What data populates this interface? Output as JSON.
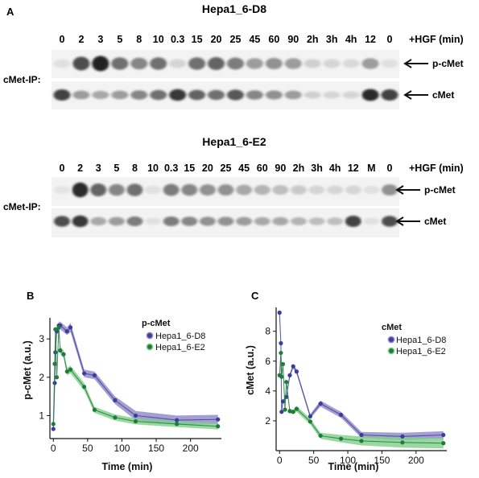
{
  "panel_a": {
    "letter": "A",
    "blots": [
      {
        "title": "Hepa1_6-D8",
        "lanes": [
          "0",
          "2",
          "3",
          "5",
          "8",
          "10",
          "0.3",
          "15",
          "20",
          "25",
          "45",
          "60",
          "90",
          "2h",
          "3h",
          "4h",
          "12",
          "0"
        ],
        "condition_label": "+HGF (min)",
        "side_label": "cMet-IP:",
        "band_labels": [
          "p-cMet",
          "cMet"
        ],
        "pcmet_intensity": [
          0.05,
          0.7,
          0.9,
          0.55,
          0.45,
          0.55,
          0.1,
          0.55,
          0.6,
          0.5,
          0.35,
          0.4,
          0.35,
          0.12,
          0.1,
          0.08,
          0.35,
          0.05
        ],
        "cmet_intensity": [
          0.75,
          0.35,
          0.3,
          0.35,
          0.45,
          0.55,
          0.8,
          0.6,
          0.55,
          0.65,
          0.45,
          0.4,
          0.35,
          0.12,
          0.1,
          0.1,
          0.85,
          0.75
        ]
      },
      {
        "title": "Hepa1_6-E2",
        "lanes": [
          "0",
          "2",
          "3",
          "5",
          "8",
          "10",
          "0.3",
          "15",
          "20",
          "25",
          "45",
          "60",
          "90",
          "2h",
          "3h",
          "4h",
          "12",
          "M",
          "0"
        ],
        "condition_label": "+HGF (min)",
        "side_label": "cMet-IP:",
        "band_labels": [
          "p-cMet",
          "cMet"
        ],
        "pcmet_intensity": [
          0.03,
          0.85,
          0.6,
          0.45,
          0.55,
          0.05,
          0.5,
          0.45,
          0.4,
          0.4,
          0.3,
          0.25,
          0.2,
          0.15,
          0.1,
          0.1,
          0.1,
          0.05,
          0.4
        ],
        "cmet_intensity": [
          0.7,
          0.8,
          0.3,
          0.35,
          0.5,
          0.05,
          0.5,
          0.45,
          0.4,
          0.4,
          0.35,
          0.3,
          0.3,
          0.25,
          0.2,
          0.2,
          0.75,
          0.05,
          0.7
        ]
      }
    ]
  },
  "chart_data": [
    {
      "panel": "B",
      "type": "line",
      "xlabel": "Time (min)",
      "ylabel": "p-cMet (a.u.)",
      "xlim": [
        -5,
        245
      ],
      "ylim": [
        0.4,
        3.55
      ],
      "xticks": [
        0,
        50,
        100,
        150,
        200
      ],
      "yticks": [
        1,
        2,
        3
      ],
      "legend_title": "p-cMet",
      "legend_position": "top-right",
      "series": [
        {
          "name": "Hepa1_6-D8",
          "color": "#3a3d9a",
          "band": "#8f86c8",
          "x": [
            0,
            2,
            3,
            5,
            8,
            10,
            20,
            25,
            45,
            60,
            90,
            120,
            180,
            240
          ],
          "y": [
            0.65,
            1.85,
            2.65,
            3.2,
            3.35,
            3.35,
            3.2,
            3.3,
            2.1,
            2.05,
            1.4,
            1.0,
            0.88,
            0.9
          ],
          "sd": [
            0.05,
            0.08,
            0.1,
            0.1,
            0.1,
            0.1,
            0.1,
            0.12,
            0.1,
            0.1,
            0.1,
            0.12,
            0.12,
            0.12
          ]
        },
        {
          "name": "Hepa1_6-E2",
          "color": "#1f7a3c",
          "band": "#7fd08a",
          "x": [
            0,
            2,
            3,
            5,
            8,
            10,
            15,
            20,
            25,
            45,
            60,
            90,
            120,
            180,
            240
          ],
          "y": [
            0.78,
            2.35,
            3.25,
            2.0,
            3.3,
            2.7,
            2.6,
            2.15,
            2.2,
            1.75,
            1.15,
            0.95,
            0.85,
            0.78,
            0.72
          ],
          "sd": [
            0.05,
            0.1,
            0.1,
            0.1,
            0.1,
            0.1,
            0.1,
            0.1,
            0.1,
            0.1,
            0.08,
            0.08,
            0.08,
            0.08,
            0.08
          ]
        }
      ]
    },
    {
      "panel": "C",
      "type": "line",
      "xlabel": "Time (min)",
      "ylabel": "cMet (a.u.)",
      "xlim": [
        -5,
        245
      ],
      "ylim": [
        0,
        9.6
      ],
      "xticks": [
        0,
        50,
        100,
        150,
        200
      ],
      "yticks": [
        2,
        4,
        6,
        8
      ],
      "legend_title": "cMet",
      "legend_position": "top-right",
      "series": [
        {
          "name": "Hepa1_6-D8",
          "color": "#3a3d9a",
          "band": "#8f86c8",
          "x": [
            0,
            2,
            3,
            5,
            10,
            15,
            20,
            25,
            45,
            60,
            90,
            120,
            180,
            240
          ],
          "y": [
            9.25,
            7.2,
            2.6,
            3.3,
            3.6,
            5.05,
            5.65,
            5.3,
            2.3,
            3.15,
            2.4,
            1.05,
            0.95,
            1.05
          ],
          "sd": [
            0.1,
            0.1,
            0.1,
            0.1,
            0.1,
            0.15,
            0.15,
            0.15,
            0.15,
            0.2,
            0.2,
            0.2,
            0.25,
            0.25
          ]
        },
        {
          "name": "Hepa1_6-E2",
          "color": "#1f7a3c",
          "band": "#7fd08a",
          "x": [
            0,
            2,
            3,
            5,
            8,
            10,
            15,
            20,
            25,
            45,
            60,
            90,
            120,
            180,
            240
          ],
          "y": [
            5.05,
            6.55,
            4.95,
            5.8,
            2.75,
            4.6,
            2.65,
            2.6,
            2.8,
            1.95,
            1.0,
            0.8,
            0.65,
            0.55,
            0.5
          ],
          "sd": [
            0.1,
            0.15,
            0.15,
            0.15,
            0.15,
            0.15,
            0.15,
            0.15,
            0.2,
            0.2,
            0.2,
            0.25,
            0.3,
            0.35,
            0.35
          ]
        }
      ]
    }
  ]
}
